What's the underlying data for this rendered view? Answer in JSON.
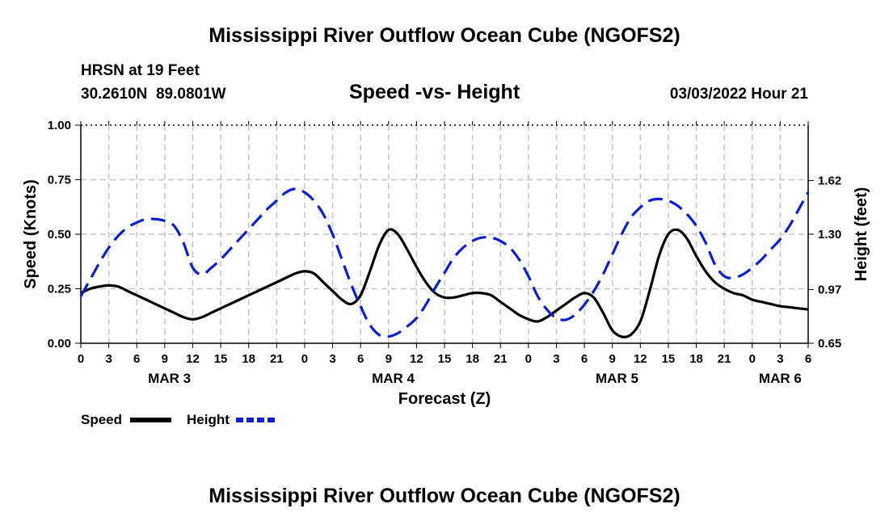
{
  "page": {
    "title": "Mississippi River Outflow Ocean Cube (NGOFS2)",
    "footer_title": "Mississippi River Outflow Ocean Cube (NGOFS2)",
    "station_line": "HRSN at 19 Feet",
    "coords_line": "30.2610N  89.0801W",
    "datetime": "03/03/2022 Hour 21"
  },
  "chart_data": {
    "type": "line",
    "title": "Speed -vs- Height",
    "xlabel": "Forecast (Z)",
    "ylabel": "Speed (Knots)",
    "y2label": "Height (feet)",
    "x_hours_range": [
      0,
      78
    ],
    "ylim": [
      0,
      1.0
    ],
    "y2lim": [
      0.65,
      1.95
    ],
    "grid": true,
    "legend_position": "bottom-left",
    "x_tick_hours": [
      0,
      3,
      6,
      9,
      12,
      15,
      18,
      21,
      24,
      27,
      30,
      33,
      36,
      39,
      42,
      45,
      48,
      51,
      54,
      57,
      60,
      63,
      66,
      69,
      72,
      75,
      78
    ],
    "x_tick_labels": [
      "0",
      "3",
      "6",
      "9",
      "12",
      "15",
      "18",
      "21",
      "0",
      "3",
      "6",
      "9",
      "12",
      "15",
      "18",
      "21",
      "0",
      "3",
      "6",
      "9",
      "12",
      "15",
      "18",
      "21",
      "0",
      "3",
      "6"
    ],
    "date_labels": [
      {
        "label": "MAR 3",
        "hour": 9.5
      },
      {
        "label": "MAR 4",
        "hour": 33.5
      },
      {
        "label": "MAR 5",
        "hour": 57.5
      },
      {
        "label": "MAR 6",
        "hour": 75
      }
    ],
    "y_ticks": [
      0,
      0.25,
      0.5,
      0.75,
      1.0
    ],
    "y_tick_labels": [
      "0.00",
      "0.25",
      "0.50",
      "0.75",
      "1.00"
    ],
    "y2_ticks": [
      0.65,
      0.97,
      1.3,
      1.62
    ],
    "y2_tick_labels": [
      "0.65",
      "0.97",
      "1.30",
      "1.62"
    ],
    "series": [
      {
        "name": "Speed",
        "axis": "left",
        "color": "#000000",
        "dash": "solid",
        "x": [
          0,
          1,
          2,
          3,
          4,
          5,
          6,
          7,
          8,
          9,
          10,
          11,
          12,
          13,
          14,
          15,
          16,
          17,
          18,
          19,
          20,
          21,
          22,
          23,
          24,
          25,
          26,
          27,
          28,
          29,
          30,
          31,
          32,
          33,
          34,
          35,
          36,
          37,
          38,
          39,
          40,
          41,
          42,
          43,
          44,
          45,
          46,
          47,
          48,
          49,
          50,
          51,
          52,
          53,
          54,
          55,
          56,
          57,
          58,
          59,
          60,
          61,
          62,
          63,
          64,
          65,
          66,
          67,
          68,
          69,
          70,
          71,
          72,
          73,
          74,
          75,
          76,
          77,
          78
        ],
        "values": [
          0.23,
          0.25,
          0.26,
          0.265,
          0.26,
          0.24,
          0.22,
          0.2,
          0.18,
          0.16,
          0.14,
          0.12,
          0.11,
          0.12,
          0.14,
          0.16,
          0.18,
          0.2,
          0.22,
          0.24,
          0.26,
          0.28,
          0.3,
          0.32,
          0.33,
          0.32,
          0.28,
          0.24,
          0.2,
          0.18,
          0.22,
          0.33,
          0.45,
          0.52,
          0.5,
          0.43,
          0.35,
          0.28,
          0.23,
          0.21,
          0.21,
          0.22,
          0.23,
          0.23,
          0.22,
          0.19,
          0.16,
          0.13,
          0.11,
          0.1,
          0.12,
          0.15,
          0.18,
          0.21,
          0.23,
          0.21,
          0.14,
          0.06,
          0.03,
          0.04,
          0.1,
          0.24,
          0.4,
          0.5,
          0.52,
          0.48,
          0.4,
          0.33,
          0.28,
          0.25,
          0.23,
          0.22,
          0.2,
          0.19,
          0.18,
          0.17,
          0.165,
          0.16,
          0.155
        ]
      },
      {
        "name": "Height",
        "axis": "right",
        "color": "#0a1fd0",
        "dash": "dashed",
        "x": [
          0,
          1,
          2,
          3,
          4,
          5,
          6,
          7,
          8,
          9,
          10,
          11,
          12,
          13,
          14,
          15,
          16,
          17,
          18,
          19,
          20,
          21,
          22,
          23,
          24,
          25,
          26,
          27,
          28,
          29,
          30,
          31,
          32,
          33,
          34,
          35,
          36,
          37,
          38,
          39,
          40,
          41,
          42,
          43,
          44,
          45,
          46,
          47,
          48,
          49,
          50,
          51,
          52,
          53,
          54,
          55,
          56,
          57,
          58,
          59,
          60,
          61,
          62,
          63,
          64,
          65,
          66,
          67,
          68,
          69,
          70,
          71,
          72,
          73,
          74,
          75,
          76,
          77,
          78
        ],
        "values": [
          0.93,
          1.03,
          1.13,
          1.22,
          1.29,
          1.34,
          1.37,
          1.39,
          1.39,
          1.38,
          1.35,
          1.25,
          1.1,
          1.06,
          1.1,
          1.15,
          1.21,
          1.27,
          1.33,
          1.39,
          1.45,
          1.5,
          1.55,
          1.57,
          1.55,
          1.5,
          1.42,
          1.3,
          1.15,
          1.0,
          0.87,
          0.76,
          0.7,
          0.69,
          0.71,
          0.75,
          0.8,
          0.88,
          0.98,
          1.07,
          1.16,
          1.22,
          1.26,
          1.28,
          1.28,
          1.26,
          1.22,
          1.15,
          1.05,
          0.93,
          0.85,
          0.8,
          0.79,
          0.82,
          0.88,
          0.96,
          1.06,
          1.18,
          1.3,
          1.4,
          1.46,
          1.5,
          1.51,
          1.5,
          1.47,
          1.42,
          1.35,
          1.25,
          1.12,
          1.05,
          1.04,
          1.06,
          1.1,
          1.15,
          1.21,
          1.27,
          1.35,
          1.45,
          1.55
        ]
      }
    ]
  }
}
